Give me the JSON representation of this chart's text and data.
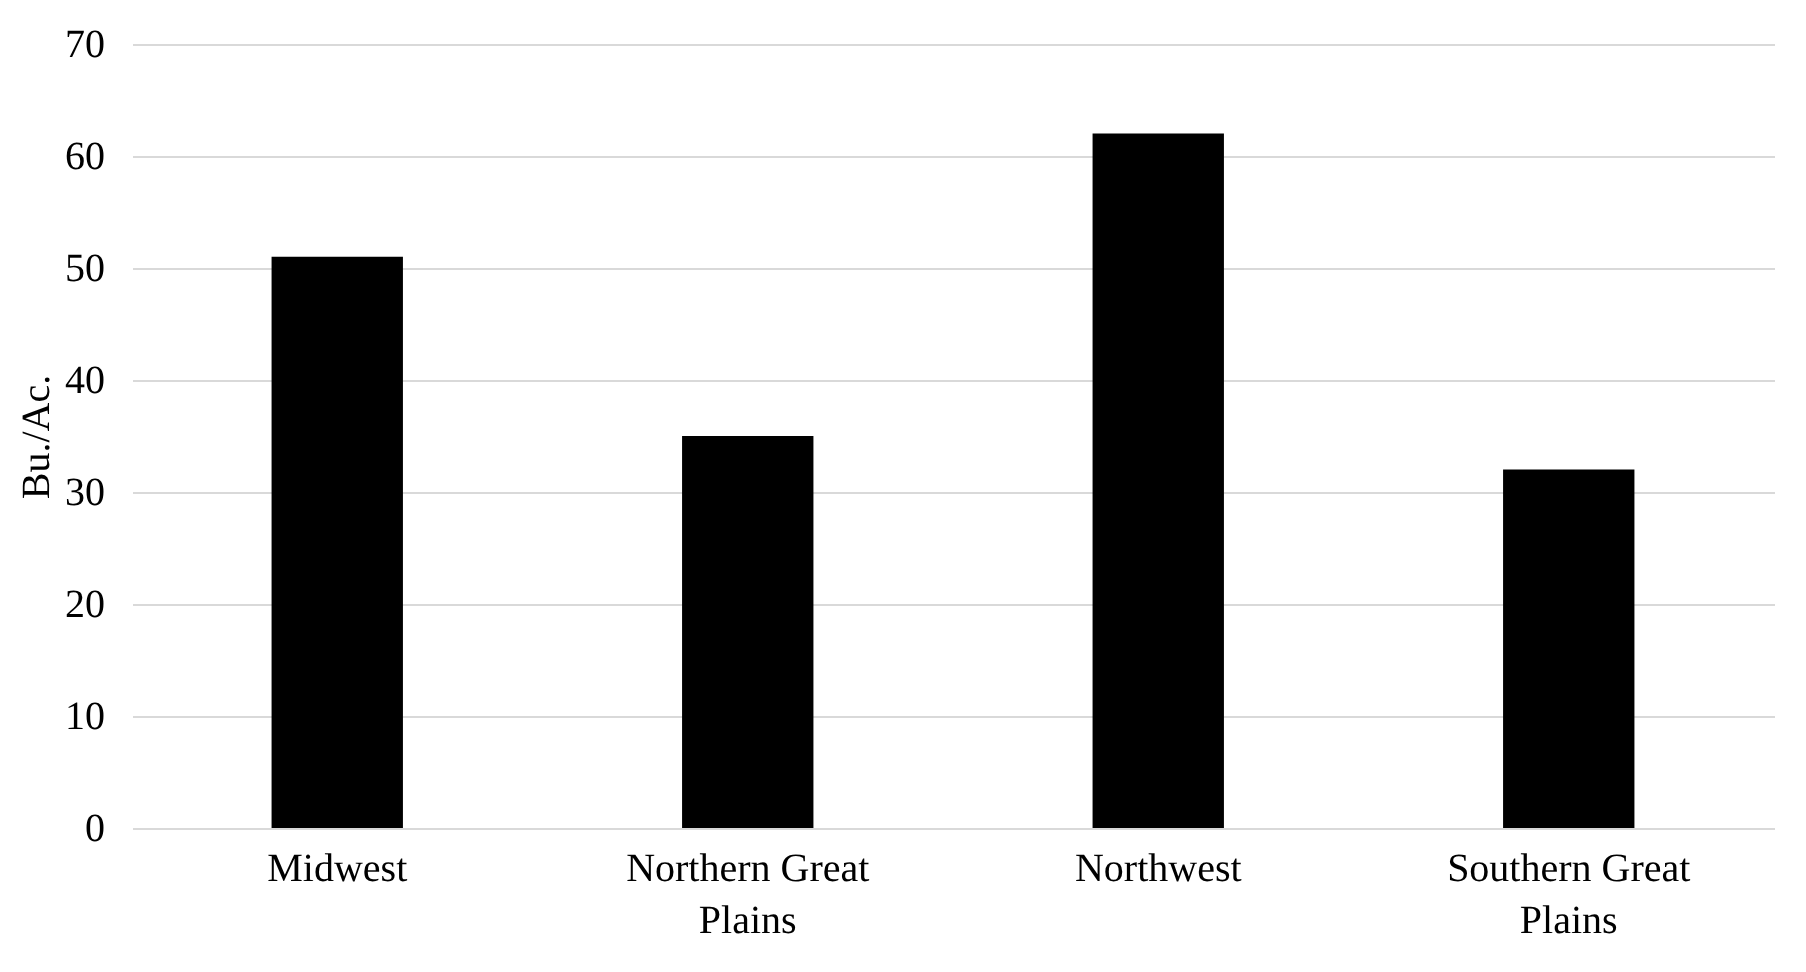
{
  "chart_data": {
    "type": "bar",
    "ylabel": "Bu./Ac.",
    "categories": [
      "Midwest",
      "Northern Great Plains",
      "Northwest",
      "Southern Great Plains"
    ],
    "values": [
      51,
      35,
      62,
      32
    ],
    "color": "#000000",
    "ylim": [
      0,
      70
    ],
    "yticks": [
      0,
      10,
      20,
      30,
      40,
      50,
      60,
      70
    ],
    "grid": "y"
  }
}
